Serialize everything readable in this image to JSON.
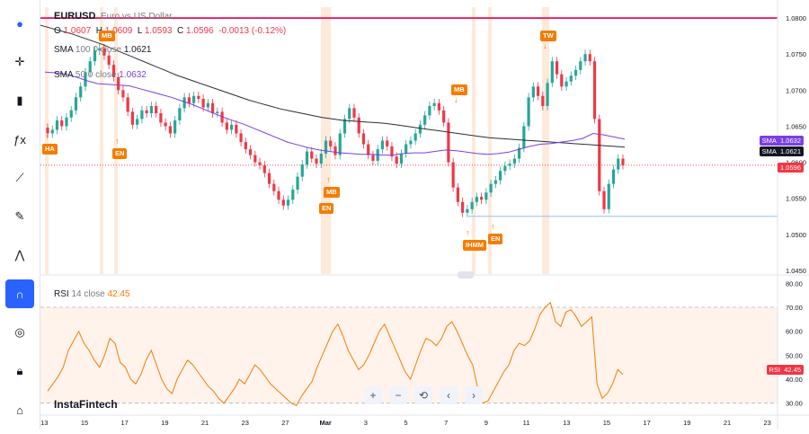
{
  "toolbar": {
    "items": [
      {
        "name": "flag-icon",
        "active": false
      },
      {
        "name": "crosshair-icon",
        "active": false
      },
      {
        "name": "candles-icon",
        "active": false
      },
      {
        "name": "fx-icon",
        "active": false
      },
      {
        "name": "drawing-icon",
        "active": false
      },
      {
        "name": "brush-icon",
        "active": false
      },
      {
        "name": "pattern-icon",
        "active": false
      },
      {
        "name": "magnet-icon",
        "active": true
      },
      {
        "name": "eye-off-icon",
        "active": false
      },
      {
        "name": "lock-icon",
        "active": false
      },
      {
        "name": "camera-icon",
        "active": false
      }
    ]
  },
  "header": {
    "symbol": "EURUSD",
    "description": "Euro vs US Dollar",
    "o_label": "O",
    "o_val": "1.0607",
    "h_label": "H",
    "h_val": "1.0609",
    "l_label": "L",
    "l_val": "1.0593",
    "c_label": "C",
    "c_val": "1.0596",
    "change": "-0.0013 (-0.12%)",
    "sma1_label": "SMA",
    "sma1_params": "100 0 close",
    "sma1_val": "1.0621",
    "sma2_label": "SMA",
    "sma2_params": "50 0 close",
    "sma2_val": "1.0632"
  },
  "rsi_legend": {
    "label": "RSI",
    "params": "14 close",
    "value": "42.45"
  },
  "price_tags": {
    "sma50": {
      "label": "SMA",
      "value": "1.0632"
    },
    "sma100": {
      "label": "SMA",
      "value": "1.0621"
    },
    "last": {
      "value": "1.0596"
    },
    "rsi": {
      "label": "RSI",
      "value": "42.45"
    }
  },
  "watermark": "InstaFintech",
  "controls": [
    "+",
    "−",
    "⟲",
    "‹",
    "›"
  ],
  "badges": [
    {
      "text": "HA",
      "dir": "up"
    },
    {
      "text": "MB",
      "dir": "down"
    },
    {
      "text": "EN",
      "dir": "up"
    },
    {
      "text": "MB",
      "dir": "up"
    },
    {
      "text": "EN",
      "dir": "up"
    },
    {
      "text": "MB",
      "dir": "down"
    },
    {
      "text": "IHMM",
      "dir": "up"
    },
    {
      "text": "EN",
      "dir": "up"
    },
    {
      "text": "TW",
      "dir": "down"
    }
  ],
  "colors": {
    "up": "#26a69a",
    "down": "#f23645",
    "sma100": "#2a2e39",
    "sma50": "#7b3fe4",
    "rsi": "#f57c00",
    "accent": "#2962ff",
    "highlight": "#fde3cf",
    "red_line": "#e91e63",
    "blue_line": "#90bff9"
  },
  "chart_data": {
    "type": "candlestick",
    "title": "EURUSD",
    "price_axis": {
      "ylim": [
        1.0445,
        1.0815
      ],
      "ticks": [
        "1.0800",
        "1.0750",
        "1.0700",
        "1.0650",
        "1.0600",
        "1.0550",
        "1.0500",
        "1.0450"
      ]
    },
    "rsi_axis": {
      "ylim": [
        25,
        82
      ],
      "ticks": [
        "80.00",
        "70.00",
        "60.00",
        "50.00",
        "40.00",
        "30.00"
      ],
      "levels": [
        70,
        30
      ]
    },
    "x_ticks": [
      "13",
      "15",
      "17",
      "19",
      "21",
      "23",
      "27",
      "Mar",
      "3",
      "5",
      "7",
      "9",
      "11",
      "13",
      "15",
      "17",
      "19",
      "21",
      "23"
    ],
    "horizontal_levels": [
      1.08,
      1.0525
    ],
    "last_price": 1.0596,
    "candles_close": [
      1.064,
      1.0645,
      1.0658,
      1.065,
      1.0662,
      1.0672,
      1.069,
      1.0705,
      1.0725,
      1.074,
      1.0755,
      1.0758,
      1.0748,
      1.0735,
      1.0718,
      1.07,
      1.069,
      1.067,
      1.0652,
      1.066,
      1.0672,
      1.0668,
      1.0678,
      1.0668,
      1.0655,
      1.065,
      1.064,
      1.0658,
      1.0675,
      1.069,
      1.0682,
      1.0692,
      1.0688,
      1.0676,
      1.0682,
      1.0668,
      1.067,
      1.0655,
      1.0645,
      1.0652,
      1.064,
      1.0628,
      1.0618,
      1.061,
      1.06,
      1.0596,
      1.0585,
      1.057,
      1.056,
      1.0548,
      1.054,
      1.0548,
      1.0562,
      1.058,
      1.0597,
      1.0615,
      1.0605,
      1.0598,
      1.0612,
      1.063,
      1.0622,
      1.061,
      1.064,
      1.066,
      1.0675,
      1.0662,
      1.064,
      1.0625,
      1.061,
      1.0602,
      1.0618,
      1.063,
      1.0622,
      1.0608,
      1.0598,
      1.0612,
      1.0625,
      1.063,
      1.064,
      1.0652,
      1.0665,
      1.0678,
      1.0682,
      1.0672,
      1.0655,
      1.06,
      1.0565,
      1.0545,
      1.053,
      1.0535,
      1.0545,
      1.0552,
      1.0548,
      1.0558,
      1.057,
      1.0575,
      1.0588,
      1.0595,
      1.0598,
      1.0605,
      1.062,
      1.065,
      1.069,
      1.0705,
      1.0692,
      1.0678,
      1.071,
      1.074,
      1.0722,
      1.0705,
      1.0712,
      1.072,
      1.0728,
      1.074,
      1.075,
      1.074,
      1.066,
      1.056,
      1.0535,
      1.057,
      1.059,
      1.0605,
      1.0596
    ],
    "sma100": [
      1.079,
      1.0786,
      1.0782,
      1.0778,
      1.0773,
      1.0768,
      1.0763,
      1.0757,
      1.0751,
      1.0745,
      1.0739,
      1.0733,
      1.0727,
      1.0721,
      1.0716,
      1.0711,
      1.0706,
      1.0701,
      1.0696,
      1.0691,
      1.0686,
      1.0682,
      1.0678,
      1.0674,
      1.0671,
      1.0668,
      1.0665,
      1.0662,
      1.066,
      1.0658,
      1.0657,
      1.0656,
      1.0655,
      1.0654,
      1.0652,
      1.065,
      1.0648,
      1.0646,
      1.0644,
      1.0642,
      1.064,
      1.0638,
      1.0636,
      1.0634,
      1.0633,
      1.0632,
      1.0631,
      1.063,
      1.0629,
      1.0628,
      1.0627,
      1.0626,
      1.0625,
      1.0624,
      1.0623,
      1.0622,
      1.0621
    ],
    "sma50": [
      1.0725,
      1.0724,
      1.0722,
      1.0718,
      1.0713,
      1.0709,
      1.0708,
      1.0707,
      1.0706,
      1.0702,
      1.0698,
      1.0694,
      1.069,
      1.0685,
      1.068,
      1.0674,
      1.0668,
      1.0662,
      1.0657,
      1.0652,
      1.0646,
      1.064,
      1.0634,
      1.0628,
      1.0624,
      1.062,
      1.0617,
      1.0615,
      1.0613,
      1.0612,
      1.0611,
      1.0611,
      1.061,
      1.061,
      1.0612,
      1.0613,
      1.0613,
      1.0615,
      1.0617,
      1.0616,
      1.0614,
      1.0612,
      1.0611,
      1.0612,
      1.0614,
      1.0618,
      1.0622,
      1.0625,
      1.0626,
      1.0628,
      1.063,
      1.0633,
      1.064,
      1.0638,
      1.0635,
      1.0632
    ],
    "rsi": [
      35,
      38,
      41,
      45,
      52,
      56,
      60,
      55,
      52,
      48,
      45,
      50,
      57,
      55,
      47,
      45,
      40,
      38,
      42,
      48,
      52,
      46,
      40,
      36,
      34,
      40,
      44,
      48,
      46,
      43,
      40,
      37,
      35,
      32,
      30,
      33,
      36,
      40,
      38,
      42,
      46,
      44,
      41,
      38,
      36,
      34,
      32,
      30,
      29,
      33,
      36,
      39,
      45,
      50,
      55,
      60,
      63,
      58,
      52,
      48,
      44,
      46,
      50,
      55,
      60,
      63,
      58,
      53,
      48,
      43,
      40,
      46,
      52,
      57,
      56,
      54,
      57,
      62,
      64,
      60,
      55,
      50,
      46,
      36,
      30,
      31,
      35,
      39,
      43,
      46,
      52,
      55,
      54,
      56,
      61,
      67,
      70,
      72,
      64,
      62,
      68,
      69,
      66,
      62,
      64,
      66,
      38,
      32,
      34,
      38,
      44,
      42
    ]
  }
}
